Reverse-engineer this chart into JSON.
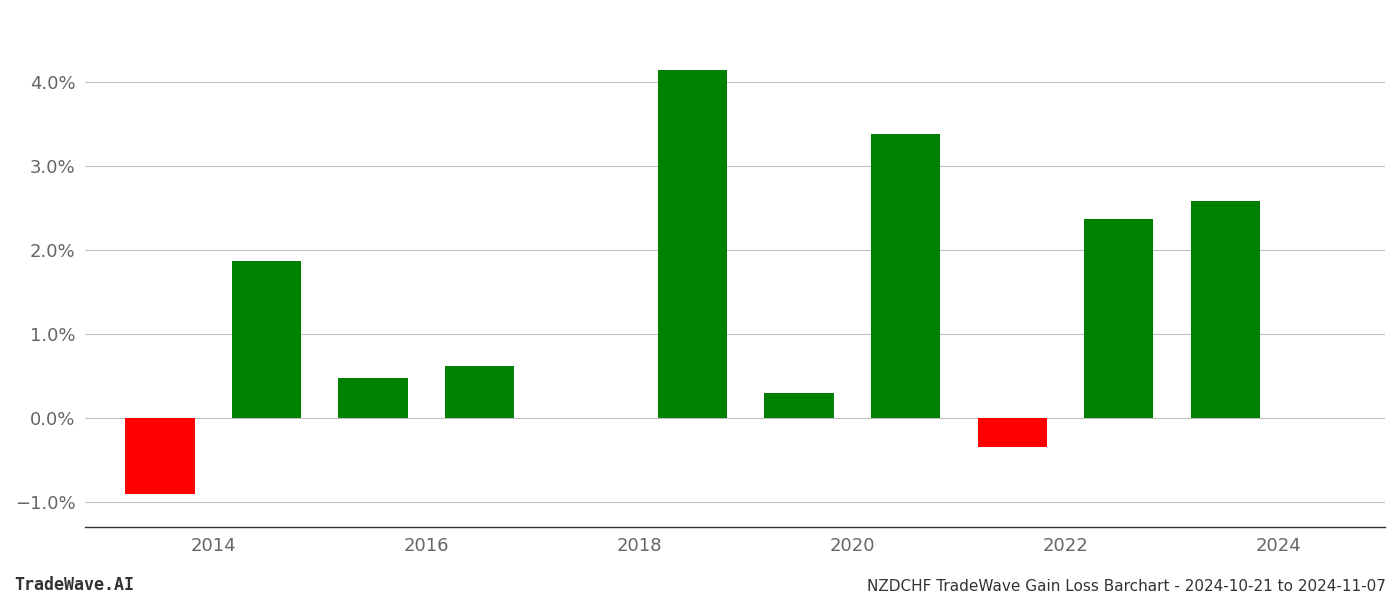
{
  "bar_centers": [
    2013.5,
    2014.5,
    2015.5,
    2016.5,
    2018.5,
    2019.5,
    2020.5,
    2021.5,
    2022.5,
    2023.5
  ],
  "values": [
    -0.009,
    0.0187,
    0.0048,
    0.0062,
    0.0415,
    0.003,
    0.0338,
    -0.0035,
    0.0237,
    0.0258
  ],
  "bar_color_positive": "#008000",
  "bar_color_negative": "#ff0000",
  "background_color": "#ffffff",
  "grid_color": "#c0c0c0",
  "title": "NZDCHF TradeWave Gain Loss Barchart - 2024-10-21 to 2024-11-07",
  "watermark": "TradeWave.AI",
  "ylim_min": -0.013,
  "ylim_max": 0.048,
  "xlim_min": 2012.8,
  "xlim_max": 2025.0,
  "bar_width": 0.65,
  "xticks": [
    2014,
    2016,
    2018,
    2020,
    2022,
    2024
  ],
  "yticks": [
    -0.01,
    0.0,
    0.01,
    0.02,
    0.03,
    0.04
  ],
  "xlabel_fontsize": 13,
  "ylabel_fontsize": 13,
  "title_fontsize": 11,
  "watermark_fontsize": 12
}
